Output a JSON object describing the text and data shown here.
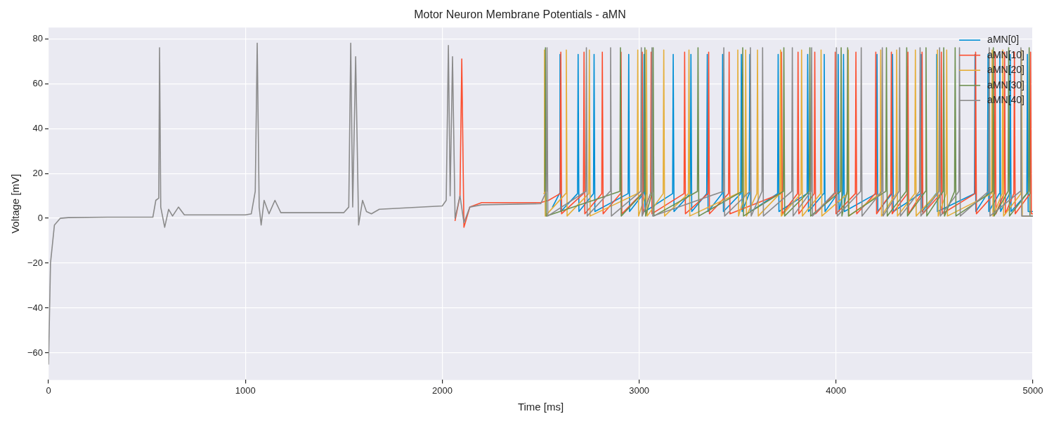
{
  "chart_data": {
    "type": "line",
    "title": "Motor Neuron Membrane Potentials - aMN",
    "xlabel": "Time [ms]",
    "ylabel": "Voltage [mV]",
    "xlim": [
      0,
      5000
    ],
    "ylim": [
      -72,
      85
    ],
    "xticks": [
      0,
      1000,
      2000,
      3000,
      4000,
      5000
    ],
    "yticks": [
      -60,
      -40,
      -20,
      0,
      20,
      40,
      60,
      80
    ],
    "grid": true,
    "legend": "top right",
    "marker": "none",
    "line_style": "solid",
    "series": [
      {
        "name": "aMN[0]",
        "color": "#008fd5",
        "x": [
          2560,
          2595,
          2598,
          2602,
          2687,
          2690,
          2694,
          2768,
          2771,
          2775,
          2944,
          2947,
          2951,
          3022,
          3025,
          3029,
          3170,
          3173,
          3177,
          3260,
          3263,
          3267,
          3343,
          3346,
          3350,
          3421,
          3424,
          3428,
          3516,
          3519,
          3523,
          3559,
          3562,
          3566,
          3703,
          3706,
          3710,
          3853,
          3856,
          3860,
          3937,
          3940,
          3944,
          4008,
          4011,
          4015,
          4035,
          4038,
          4042,
          4205,
          4208,
          4212,
          4284,
          4287,
          4291,
          4430,
          4433,
          4437,
          4508,
          4511,
          4515,
          4703,
          4706,
          4710,
          4769,
          4772,
          4776,
          4829,
          4832,
          4836,
          4882,
          4885,
          4889,
          4969,
          4972,
          4976,
          5000
        ],
        "values": [
          5,
          11,
          73,
          3,
          11,
          73,
          3,
          11,
          73,
          3,
          11,
          73,
          3,
          11,
          73,
          3,
          11,
          73,
          3,
          11,
          73,
          3,
          11,
          73,
          3,
          11,
          73,
          3,
          11,
          73,
          3,
          11,
          73,
          3,
          11,
          73,
          3,
          11,
          73,
          3,
          11,
          73,
          3,
          11,
          73,
          3,
          11,
          73,
          3,
          11,
          73,
          3,
          11,
          73,
          3,
          11,
          73,
          3,
          11,
          73,
          3,
          11,
          73,
          3,
          11,
          73,
          3,
          11,
          73,
          3,
          11,
          73,
          3,
          11,
          73,
          3,
          3
        ]
      },
      {
        "name": "aMN[10]",
        "color": "#fc4f30",
        "x": [
          2065,
          2090,
          2099,
          2110,
          2140,
          2200,
          2500,
          2540,
          2599,
          2602,
          2606,
          2717,
          2720,
          2724,
          2810,
          2813,
          2817,
          2905,
          2908,
          2912,
          3013,
          3016,
          3020,
          3058,
          3061,
          3065,
          3228,
          3231,
          3235,
          3350,
          3353,
          3357,
          3454,
          3457,
          3461,
          3720,
          3723,
          3727,
          3804,
          3807,
          3811,
          3889,
          3892,
          3896,
          3993,
          3996,
          4000,
          4098,
          4101,
          4105,
          4199,
          4202,
          4206,
          4278,
          4281,
          4285,
          4362,
          4365,
          4369,
          4434,
          4437,
          4441,
          4532,
          4535,
          4539,
          4706,
          4709,
          4713,
          4805,
          4808,
          4812,
          4853,
          4856,
          4860,
          4903,
          4906,
          4910,
          4985,
          4988,
          4992,
          5000
        ],
        "values": [
          -1,
          10,
          71,
          -4,
          5,
          7,
          7,
          8,
          11,
          74,
          2,
          11,
          74,
          2,
          11,
          74,
          2,
          11,
          74,
          2,
          11,
          74,
          2,
          11,
          74,
          2,
          11,
          74,
          2,
          11,
          74,
          2,
          11,
          74,
          2,
          11,
          74,
          2,
          11,
          74,
          2,
          11,
          74,
          2,
          11,
          74,
          2,
          11,
          74,
          2,
          11,
          74,
          2,
          11,
          74,
          2,
          11,
          74,
          2,
          11,
          74,
          2,
          11,
          74,
          2,
          11,
          74,
          2,
          11,
          74,
          2,
          11,
          74,
          2,
          11,
          74,
          2,
          11,
          74,
          2,
          2
        ]
      },
      {
        "name": "aMN[20]",
        "color": "#e5ae38",
        "x": [
          2516,
          2519,
          2523,
          2627,
          2630,
          2634,
          2744,
          2747,
          2751,
          2990,
          2993,
          2997,
          3034,
          3037,
          3041,
          3122,
          3125,
          3129,
          3250,
          3253,
          3257,
          3498,
          3501,
          3505,
          3538,
          3541,
          3545,
          3598,
          3601,
          3605,
          3715,
          3718,
          3722,
          3822,
          3825,
          3829,
          3921,
          3924,
          3928,
          4059,
          4062,
          4066,
          4224,
          4227,
          4231,
          4305,
          4308,
          4312,
          4400,
          4403,
          4407,
          4512,
          4515,
          4519,
          4559,
          4562,
          4566,
          4790,
          4793,
          4797,
          4844,
          4847,
          4851,
          4939,
          4942,
          4946,
          5000
        ],
        "values": [
          11,
          75,
          1,
          11,
          75,
          1,
          11,
          75,
          1,
          11,
          75,
          1,
          11,
          75,
          1,
          11,
          75,
          1,
          11,
          75,
          1,
          11,
          75,
          1,
          11,
          75,
          1,
          11,
          75,
          1,
          11,
          75,
          1,
          11,
          75,
          1,
          11,
          75,
          1,
          11,
          75,
          1,
          11,
          75,
          1,
          11,
          75,
          1,
          11,
          75,
          1,
          11,
          75,
          1,
          11,
          75,
          1,
          11,
          75,
          1,
          11,
          75,
          1,
          11,
          75,
          1,
          1
        ]
      },
      {
        "name": "aMN[30]",
        "color": "#6d904f",
        "x": [
          2521,
          2524,
          2528,
          2902,
          2905,
          2909,
          3026,
          3029,
          3033,
          3068,
          3071,
          3075,
          3296,
          3299,
          3303,
          3523,
          3526,
          3530,
          3732,
          3735,
          3739,
          3864,
          3867,
          3871,
          4023,
          4026,
          4030,
          4056,
          4059,
          4063,
          4253,
          4256,
          4260,
          4356,
          4359,
          4363,
          4454,
          4457,
          4461,
          4544,
          4547,
          4551,
          4602,
          4605,
          4609,
          4796,
          4799,
          4803,
          4874,
          4877,
          4881,
          4978,
          4981,
          4985,
          5000
        ],
        "values": [
          12,
          76,
          1,
          12,
          76,
          1,
          12,
          76,
          1,
          12,
          76,
          1,
          12,
          76,
          1,
          12,
          76,
          1,
          12,
          76,
          1,
          12,
          76,
          1,
          12,
          76,
          1,
          12,
          76,
          1,
          12,
          76,
          1,
          12,
          76,
          1,
          12,
          76,
          1,
          12,
          76,
          1,
          12,
          76,
          1,
          12,
          76,
          1,
          12,
          76,
          1,
          12,
          76,
          1,
          1
        ]
      },
      {
        "name": "aMN[40]",
        "color": "#8b8b8b",
        "x": [
          0,
          10,
          30,
          60,
          100,
          300,
          530,
          545,
          560,
          564,
          570,
          590,
          610,
          630,
          660,
          690,
          1000,
          1030,
          1050,
          1060,
          1070,
          1080,
          1095,
          1120,
          1150,
          1180,
          1500,
          1525,
          1535,
          1545,
          1560,
          1575,
          1595,
          1615,
          1640,
          1680,
          2000,
          2020,
          2031,
          2040,
          2052,
          2065,
          2090,
          2110,
          2140,
          2200,
          2500,
          2529,
          2532,
          2536,
          2729,
          2732,
          2736,
          2852,
          2855,
          2859,
          3008,
          3011,
          3015,
          3062,
          3065,
          3069,
          3427,
          3430,
          3434,
          3562,
          3565,
          3569,
          3624,
          3627,
          3631,
          3775,
          3778,
          3782,
          3873,
          3876,
          3880,
          3999,
          4002,
          4006,
          4125,
          4128,
          4132,
          4232,
          4235,
          4239,
          4320,
          4323,
          4327,
          4424,
          4427,
          4431,
          4523,
          4526,
          4530,
          4624,
          4627,
          4631,
          4775,
          4778,
          4782,
          4936,
          4939,
          4943,
          5000
        ],
        "values": [
          -65,
          -20,
          -3,
          0,
          0.3,
          0.5,
          0.5,
          8,
          9,
          76,
          5,
          -4,
          4,
          1,
          5,
          1.5,
          1.5,
          2,
          12,
          78,
          5,
          -3,
          8,
          2,
          8,
          2.5,
          2.5,
          5,
          78,
          5,
          72,
          -3,
          8,
          3,
          2,
          4,
          5.5,
          8,
          77,
          10,
          72,
          0,
          10,
          -2,
          5,
          6,
          6.5,
          12,
          76,
          1,
          12,
          76,
          1,
          12,
          76,
          1,
          12,
          76,
          1,
          12,
          76,
          1,
          12,
          76,
          1,
          12,
          76,
          1,
          12,
          76,
          1,
          12,
          76,
          1,
          12,
          76,
          1,
          12,
          76,
          1,
          12,
          76,
          1,
          12,
          76,
          1,
          12,
          76,
          1,
          12,
          76,
          1,
          12,
          76,
          1,
          12,
          76,
          1,
          12,
          76,
          1,
          12,
          76,
          1,
          1
        ]
      }
    ]
  }
}
